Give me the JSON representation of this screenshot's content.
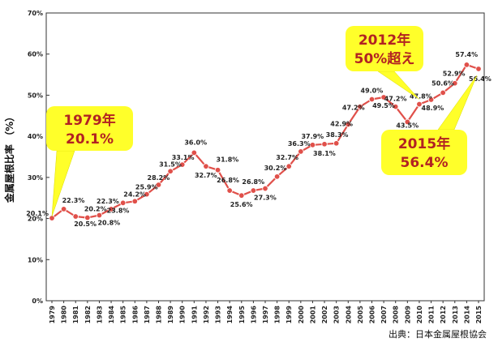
{
  "chart_data": {
    "type": "line",
    "ylabel": "金属屋根比率 （%）",
    "ylim": [
      0,
      70
    ],
    "yticks": [
      "0%",
      "10%",
      "20%",
      "30%",
      "40%",
      "50%",
      "60%",
      "70%"
    ],
    "grid": false,
    "categories": [
      "1979",
      "1980",
      "1981",
      "1982",
      "1983",
      "1984",
      "1985",
      "1986",
      "1987",
      "1988",
      "1989",
      "1990",
      "1991",
      "1992",
      "1993",
      "1994",
      "1995",
      "1996",
      "1997",
      "1998",
      "1999",
      "2000",
      "2001",
      "2002",
      "2003",
      "2004",
      "2005",
      "2006",
      "2007",
      "2008",
      "2009",
      "2010",
      "2011",
      "2012",
      "2013",
      "2014",
      "2015"
    ],
    "series": [
      {
        "values": [
          20.1,
          22.3,
          20.5,
          20.2,
          20.8,
          22.3,
          23.8,
          24.2,
          25.9,
          28.2,
          31.5,
          33.1,
          36.0,
          32.7,
          31.8,
          26.8,
          25.6,
          26.8,
          27.3,
          30.2,
          32.7,
          36.3,
          37.9,
          38.1,
          38.3,
          42.9,
          47.2,
          49.0,
          49.5,
          47.2,
          43.5,
          47.8,
          48.9,
          50.6,
          52.9,
          57.4,
          56.4
        ],
        "labels": [
          "20.1%",
          "22.3%",
          "20.5%",
          "20.2%",
          "20.8%",
          "22.3%",
          "23.8%",
          "24.2%",
          "25.9%",
          "28.2%",
          "31.5%",
          "33.1%",
          "36.0%",
          "32.7%",
          "31.8%",
          "26.8%",
          "25.6%",
          "26.8%",
          "27.3%",
          "30.2%",
          "32.7%",
          "36.3%",
          "37.9%",
          "38.1%",
          "38.3%",
          "42.9%",
          "47.2%",
          "49.0%",
          "49.5%",
          "47.2%",
          "43.5%",
          "47.8%",
          "48.9%",
          "50.6%",
          "52.9%",
          "57.4%",
          "56.4%"
        ],
        "color": "#e0504a"
      }
    ],
    "annotations": [
      {
        "line1": "1979年",
        "line2": "20.1%"
      },
      {
        "line1": "2012年",
        "line2": "50%超え"
      },
      {
        "line1": "2015年",
        "line2": "56.4%"
      }
    ],
    "source": "出典：日本金属屋根協会",
    "colors": {
      "line": "#e0504a",
      "callout_fill": "#ffff2a",
      "callout_text": "#b22222"
    }
  }
}
